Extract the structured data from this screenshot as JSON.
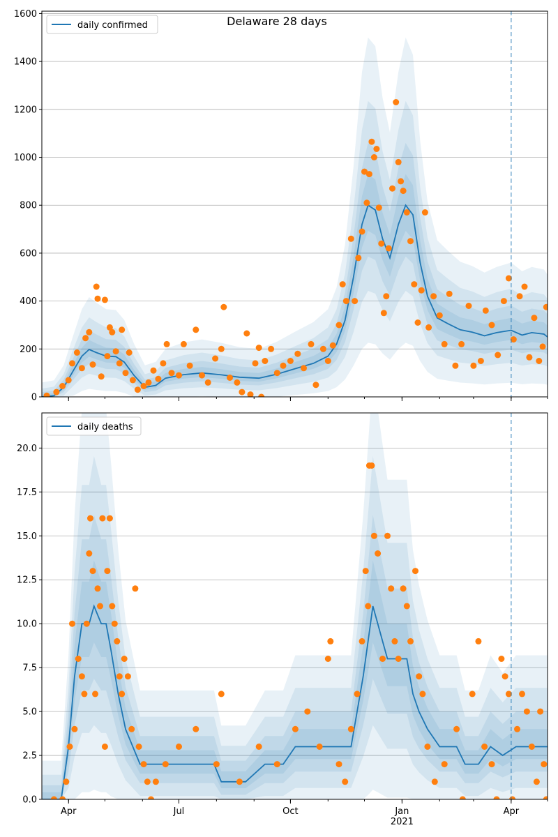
{
  "chart_data": [
    {
      "type": "line",
      "title": "Delaware 28 days",
      "legend": {
        "label": "daily confirmed",
        "placement": "upper-left"
      },
      "ylim": [
        0,
        1610
      ],
      "yticks": [
        0,
        200,
        400,
        600,
        800,
        1000,
        1200,
        1400,
        1600
      ],
      "ytick_labels": [
        "0",
        "200",
        "400",
        "600",
        "800",
        "1000",
        "1200",
        "1400",
        "1600"
      ],
      "grid": "horizontal",
      "vline_date": "2021-04-01",
      "model_median": [
        [
          "2020-03-10",
          0
        ],
        [
          "2020-03-20",
          5
        ],
        [
          "2020-03-28",
          40
        ],
        [
          "2020-04-05",
          110
        ],
        [
          "2020-04-12",
          170
        ],
        [
          "2020-04-18",
          198
        ],
        [
          "2020-04-24",
          185
        ],
        [
          "2020-05-02",
          170
        ],
        [
          "2020-05-10",
          168
        ],
        [
          "2020-05-17",
          145
        ],
        [
          "2020-05-25",
          90
        ],
        [
          "2020-06-03",
          40
        ],
        [
          "2020-06-12",
          48
        ],
        [
          "2020-06-20",
          78
        ],
        [
          "2020-07-05",
          93
        ],
        [
          "2020-07-20",
          100
        ],
        [
          "2020-08-05",
          92
        ],
        [
          "2020-08-20",
          82
        ],
        [
          "2020-09-05",
          78
        ],
        [
          "2020-09-20",
          95
        ],
        [
          "2020-10-05",
          118
        ],
        [
          "2020-10-20",
          140
        ],
        [
          "2020-11-01",
          170
        ],
        [
          "2020-11-08",
          220
        ],
        [
          "2020-11-15",
          320
        ],
        [
          "2020-11-22",
          500
        ],
        [
          "2020-11-29",
          720
        ],
        [
          "2020-12-04",
          800
        ],
        [
          "2020-12-10",
          780
        ],
        [
          "2020-12-16",
          660
        ],
        [
          "2020-12-22",
          580
        ],
        [
          "2020-12-29",
          720
        ],
        [
          "2021-01-04",
          800
        ],
        [
          "2021-01-10",
          760
        ],
        [
          "2021-01-16",
          560
        ],
        [
          "2021-01-22",
          420
        ],
        [
          "2021-01-30",
          330
        ],
        [
          "2021-02-08",
          305
        ],
        [
          "2021-02-18",
          280
        ],
        [
          "2021-02-28",
          270
        ],
        [
          "2021-03-10",
          255
        ],
        [
          "2021-03-20",
          268
        ],
        [
          "2021-04-01",
          278
        ],
        [
          "2021-04-10",
          258
        ],
        [
          "2021-04-18",
          268
        ],
        [
          "2021-04-28",
          262
        ],
        [
          "2021-05-01",
          250
        ]
      ],
      "observed": [
        [
          "2020-03-14",
          5
        ],
        [
          "2020-03-22",
          20
        ],
        [
          "2020-03-27",
          45
        ],
        [
          "2020-04-01",
          70
        ],
        [
          "2020-04-04",
          140
        ],
        [
          "2020-04-08",
          185
        ],
        [
          "2020-04-12",
          120
        ],
        [
          "2020-04-15",
          245
        ],
        [
          "2020-04-18",
          270
        ],
        [
          "2020-04-21",
          135
        ],
        [
          "2020-04-24",
          460
        ],
        [
          "2020-04-25",
          410
        ],
        [
          "2020-04-28",
          85
        ],
        [
          "2020-05-01",
          405
        ],
        [
          "2020-05-03",
          170
        ],
        [
          "2020-05-05",
          290
        ],
        [
          "2020-05-07",
          270
        ],
        [
          "2020-05-10",
          190
        ],
        [
          "2020-05-13",
          140
        ],
        [
          "2020-05-15",
          280
        ],
        [
          "2020-05-18",
          100
        ],
        [
          "2020-05-21",
          185
        ],
        [
          "2020-05-24",
          70
        ],
        [
          "2020-05-28",
          30
        ],
        [
          "2020-06-02",
          45
        ],
        [
          "2020-06-06",
          60
        ],
        [
          "2020-06-10",
          110
        ],
        [
          "2020-06-14",
          75
        ],
        [
          "2020-06-18",
          140
        ],
        [
          "2020-06-21",
          220
        ],
        [
          "2020-06-25",
          100
        ],
        [
          "2020-07-01",
          90
        ],
        [
          "2020-07-05",
          220
        ],
        [
          "2020-07-10",
          130
        ],
        [
          "2020-07-15",
          280
        ],
        [
          "2020-07-20",
          90
        ],
        [
          "2020-07-25",
          60
        ],
        [
          "2020-07-31",
          160
        ],
        [
          "2020-08-05",
          200
        ],
        [
          "2020-08-07",
          375
        ],
        [
          "2020-08-12",
          80
        ],
        [
          "2020-08-18",
          60
        ],
        [
          "2020-08-22",
          20
        ],
        [
          "2020-08-26",
          265
        ],
        [
          "2020-08-29",
          10
        ],
        [
          "2020-09-02",
          140
        ],
        [
          "2020-09-05",
          205
        ],
        [
          "2020-09-07",
          0
        ],
        [
          "2020-09-10",
          150
        ],
        [
          "2020-09-15",
          200
        ],
        [
          "2020-09-20",
          100
        ],
        [
          "2020-09-25",
          130
        ],
        [
          "2020-10-01",
          150
        ],
        [
          "2020-10-07",
          180
        ],
        [
          "2020-10-12",
          120
        ],
        [
          "2020-10-18",
          220
        ],
        [
          "2020-10-22",
          50
        ],
        [
          "2020-10-28",
          200
        ],
        [
          "2020-11-01",
          150
        ],
        [
          "2020-11-05",
          215
        ],
        [
          "2020-11-10",
          300
        ],
        [
          "2020-11-13",
          470
        ],
        [
          "2020-11-16",
          400
        ],
        [
          "2020-11-20",
          660
        ],
        [
          "2020-11-23",
          400
        ],
        [
          "2020-11-26",
          580
        ],
        [
          "2020-11-29",
          690
        ],
        [
          "2020-12-01",
          940
        ],
        [
          "2020-12-03",
          810
        ],
        [
          "2020-12-05",
          930
        ],
        [
          "2020-12-07",
          1065
        ],
        [
          "2020-12-09",
          1000
        ],
        [
          "2020-12-11",
          1035
        ],
        [
          "2020-12-13",
          790
        ],
        [
          "2020-12-15",
          640
        ],
        [
          "2020-12-17",
          350
        ],
        [
          "2020-12-19",
          420
        ],
        [
          "2020-12-21",
          620
        ],
        [
          "2020-12-24",
          870
        ],
        [
          "2020-12-27",
          1230
        ],
        [
          "2020-12-29",
          980
        ],
        [
          "2020-12-31",
          900
        ],
        [
          "2021-01-02",
          860
        ],
        [
          "2021-01-05",
          770
        ],
        [
          "2021-01-08",
          650
        ],
        [
          "2021-01-11",
          470
        ],
        [
          "2021-01-14",
          310
        ],
        [
          "2021-01-17",
          445
        ],
        [
          "2021-01-20",
          770
        ],
        [
          "2021-01-23",
          290
        ],
        [
          "2021-01-27",
          420
        ],
        [
          "2021-02-01",
          340
        ],
        [
          "2021-02-05",
          220
        ],
        [
          "2021-02-09",
          430
        ],
        [
          "2021-02-14",
          130
        ],
        [
          "2021-02-19",
          220
        ],
        [
          "2021-02-25",
          380
        ],
        [
          "2021-03-01",
          130
        ],
        [
          "2021-03-07",
          150
        ],
        [
          "2021-03-11",
          360
        ],
        [
          "2021-03-16",
          300
        ],
        [
          "2021-03-21",
          175
        ],
        [
          "2021-03-26",
          400
        ],
        [
          "2021-03-30",
          495
        ],
        [
          "2021-04-03",
          240
        ],
        [
          "2021-04-08",
          420
        ],
        [
          "2021-04-12",
          460
        ],
        [
          "2021-04-16",
          165
        ],
        [
          "2021-04-20",
          330
        ],
        [
          "2021-04-24",
          150
        ],
        [
          "2021-04-27",
          210
        ],
        [
          "2021-04-30",
          375
        ]
      ]
    },
    {
      "type": "line",
      "legend": {
        "label": "daily deaths",
        "placement": "upper-left"
      },
      "ylim": [
        0,
        22
      ],
      "yticks": [
        0,
        2.5,
        5,
        7.5,
        10,
        12.5,
        15,
        17.5,
        20
      ],
      "ytick_labels": [
        "0.0",
        "2.5",
        "5.0",
        "7.5",
        "10.0",
        "12.5",
        "15.0",
        "17.5",
        "20.0"
      ],
      "grid": "horizontal",
      "vline_date": "2021-04-01",
      "xtick_labels": [
        {
          "date": "2020-04-01",
          "label": "Apr"
        },
        {
          "date": "2020-07-01",
          "label": "Jul"
        },
        {
          "date": "2020-10-01",
          "label": "Oct"
        },
        {
          "date": "2021-01-01",
          "label": "Jan",
          "sub": "2021"
        },
        {
          "date": "2021-04-01",
          "label": "Apr"
        }
      ],
      "model_median": [
        [
          "2020-03-10",
          0
        ],
        [
          "2020-03-26",
          0
        ],
        [
          "2020-04-01",
          3
        ],
        [
          "2020-04-06",
          7
        ],
        [
          "2020-04-12",
          10
        ],
        [
          "2020-04-18",
          10
        ],
        [
          "2020-04-22",
          11
        ],
        [
          "2020-04-28",
          10
        ],
        [
          "2020-05-02",
          10
        ],
        [
          "2020-05-06",
          8.5
        ],
        [
          "2020-05-12",
          6
        ],
        [
          "2020-05-18",
          4
        ],
        [
          "2020-05-24",
          3
        ],
        [
          "2020-05-30",
          2
        ],
        [
          "2020-06-10",
          2
        ],
        [
          "2020-06-20",
          2
        ],
        [
          "2020-07-10",
          2
        ],
        [
          "2020-07-30",
          2
        ],
        [
          "2020-08-05",
          1
        ],
        [
          "2020-08-25",
          1
        ],
        [
          "2020-09-10",
          2
        ],
        [
          "2020-09-25",
          2
        ],
        [
          "2020-10-05",
          3
        ],
        [
          "2020-10-25",
          3
        ],
        [
          "2020-11-10",
          3
        ],
        [
          "2020-11-20",
          3
        ],
        [
          "2020-11-25",
          5
        ],
        [
          "2020-11-30",
          7
        ],
        [
          "2020-12-04",
          9
        ],
        [
          "2020-12-08",
          11
        ],
        [
          "2020-12-12",
          10
        ],
        [
          "2020-12-16",
          9
        ],
        [
          "2020-12-20",
          8
        ],
        [
          "2021-01-05",
          8
        ],
        [
          "2021-01-10",
          6
        ],
        [
          "2021-01-15",
          5
        ],
        [
          "2021-01-22",
          4
        ],
        [
          "2021-02-01",
          3
        ],
        [
          "2021-02-15",
          3
        ],
        [
          "2021-02-22",
          2
        ],
        [
          "2021-03-05",
          2
        ],
        [
          "2021-03-15",
          3
        ],
        [
          "2021-03-25",
          2.5
        ],
        [
          "2021-04-05",
          3
        ],
        [
          "2021-04-20",
          3
        ],
        [
          "2021-05-01",
          3
        ]
      ],
      "observed": [
        [
          "2020-03-20",
          0
        ],
        [
          "2020-03-27",
          0
        ],
        [
          "2020-03-30",
          1
        ],
        [
          "2020-04-02",
          3
        ],
        [
          "2020-04-04",
          10
        ],
        [
          "2020-04-06",
          4
        ],
        [
          "2020-04-09",
          8
        ],
        [
          "2020-04-12",
          7
        ],
        [
          "2020-04-14",
          6
        ],
        [
          "2020-04-16",
          10
        ],
        [
          "2020-04-18",
          14
        ],
        [
          "2020-04-19",
          16
        ],
        [
          "2020-04-21",
          13
        ],
        [
          "2020-04-23",
          6
        ],
        [
          "2020-04-25",
          12
        ],
        [
          "2020-04-27",
          11
        ],
        [
          "2020-04-29",
          16
        ],
        [
          "2020-05-01",
          3
        ],
        [
          "2020-05-03",
          13
        ],
        [
          "2020-05-05",
          16
        ],
        [
          "2020-05-07",
          11
        ],
        [
          "2020-05-09",
          10
        ],
        [
          "2020-05-11",
          9
        ],
        [
          "2020-05-13",
          7
        ],
        [
          "2020-05-15",
          6
        ],
        [
          "2020-05-17",
          8
        ],
        [
          "2020-05-20",
          7
        ],
        [
          "2020-05-23",
          4
        ],
        [
          "2020-05-26",
          12
        ],
        [
          "2020-05-29",
          3
        ],
        [
          "2020-06-02",
          2
        ],
        [
          "2020-06-05",
          1
        ],
        [
          "2020-06-08",
          0
        ],
        [
          "2020-06-12",
          1
        ],
        [
          "2020-06-20",
          2
        ],
        [
          "2020-07-01",
          3
        ],
        [
          "2020-07-15",
          4
        ],
        [
          "2020-08-01",
          2
        ],
        [
          "2020-08-05",
          6
        ],
        [
          "2020-08-20",
          1
        ],
        [
          "2020-09-05",
          3
        ],
        [
          "2020-09-20",
          2
        ],
        [
          "2020-10-05",
          4
        ],
        [
          "2020-10-15",
          5
        ],
        [
          "2020-10-25",
          3
        ],
        [
          "2020-11-01",
          8
        ],
        [
          "2020-11-03",
          9
        ],
        [
          "2020-11-10",
          2
        ],
        [
          "2020-11-15",
          1
        ],
        [
          "2020-11-20",
          4
        ],
        [
          "2020-11-25",
          6
        ],
        [
          "2020-11-29",
          9
        ],
        [
          "2020-12-02",
          13
        ],
        [
          "2020-12-04",
          11
        ],
        [
          "2020-12-05",
          19
        ],
        [
          "2020-12-07",
          19
        ],
        [
          "2020-12-09",
          15
        ],
        [
          "2020-12-12",
          14
        ],
        [
          "2020-12-16",
          8
        ],
        [
          "2020-12-20",
          15
        ],
        [
          "2020-12-23",
          12
        ],
        [
          "2020-12-26",
          9
        ],
        [
          "2020-12-29",
          8
        ],
        [
          "2021-01-02",
          12
        ],
        [
          "2021-01-05",
          11
        ],
        [
          "2021-01-08",
          9
        ],
        [
          "2021-01-12",
          13
        ],
        [
          "2021-01-15",
          7
        ],
        [
          "2021-01-18",
          6
        ],
        [
          "2021-01-22",
          3
        ],
        [
          "2021-01-28",
          1
        ],
        [
          "2021-02-05",
          2
        ],
        [
          "2021-02-15",
          4
        ],
        [
          "2021-02-20",
          0
        ],
        [
          "2021-02-28",
          6
        ],
        [
          "2021-03-05",
          9
        ],
        [
          "2021-03-10",
          3
        ],
        [
          "2021-03-16",
          2
        ],
        [
          "2021-03-20",
          0
        ],
        [
          "2021-03-24",
          8
        ],
        [
          "2021-03-27",
          7
        ],
        [
          "2021-03-30",
          6
        ],
        [
          "2021-04-02",
          0
        ],
        [
          "2021-04-06",
          4
        ],
        [
          "2021-04-10",
          6
        ],
        [
          "2021-04-14",
          5
        ],
        [
          "2021-04-18",
          3
        ],
        [
          "2021-04-22",
          1
        ],
        [
          "2021-04-25",
          5
        ],
        [
          "2021-04-28",
          2
        ],
        [
          "2021-04-30",
          0
        ]
      ]
    }
  ],
  "colors": {
    "line": "#1f77b4",
    "points": "#ff7f0e",
    "band": "#1f77b4",
    "vline": "#1f77b4",
    "grid": "#b0b0b0"
  }
}
